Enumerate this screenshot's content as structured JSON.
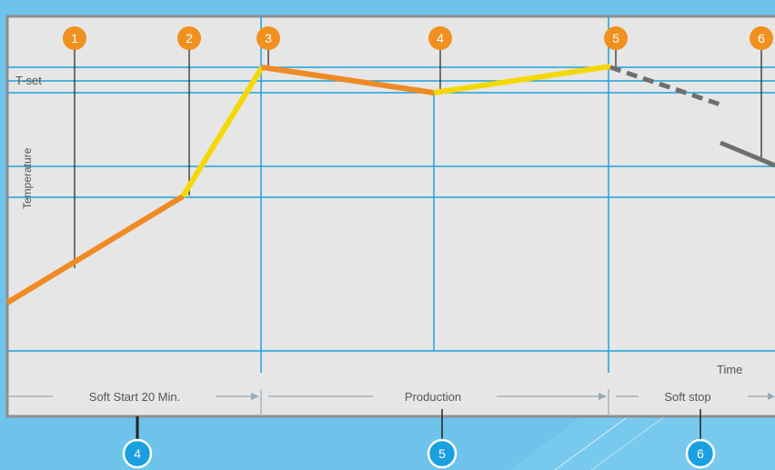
{
  "axes": {
    "y_label": "Temperature",
    "x_label": "Time",
    "setpoint_label": "T-set"
  },
  "markers_top": [
    "1",
    "2",
    "3",
    "4",
    "5",
    "6"
  ],
  "phases": [
    {
      "label": "Soft Start 20 Min.",
      "marker": "4"
    },
    {
      "label": "Production",
      "marker": "5"
    },
    {
      "label": "Soft stop",
      "marker": "6"
    }
  ],
  "colors": {
    "background": "#6ec3ea",
    "panel": "#e6e6e6",
    "grid": "#1ea0dc",
    "heating_segment": "#f08a24",
    "boost_segment": "#f5d800",
    "cooling_segment": "#6e6e6e",
    "top_marker": "#f0901e",
    "bottom_marker": "#1a9fe0"
  },
  "icons": {
    "phase_arrow": "arrow-right-icon"
  }
}
